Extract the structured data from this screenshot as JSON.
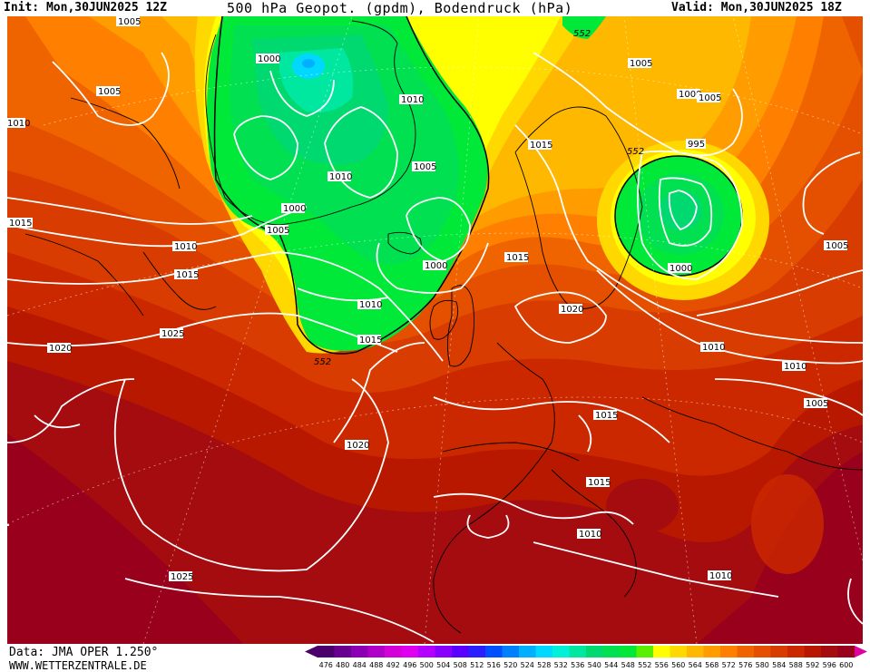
{
  "header": {
    "init_text": "Init: Mon,30JUN2025 12Z",
    "title": "500 hPa Geopot. (gpdm), Bodendruck (hPa)",
    "valid_text": "Valid: Mon,30JUN2025 18Z"
  },
  "footer": {
    "data_source": "Data: JMA OPER 1.250°",
    "website": "WWW.WETTERZENTRALE.DE"
  },
  "legend": {
    "values": [
      "476",
      "480",
      "484",
      "488",
      "492",
      "496",
      "500",
      "504",
      "508",
      "512",
      "516",
      "520",
      "524",
      "528",
      "532",
      "536",
      "540",
      "544",
      "548",
      "552",
      "556",
      "560",
      "564",
      "568",
      "572",
      "576",
      "580",
      "584",
      "588",
      "592",
      "596",
      "600"
    ],
    "colors": [
      "#4b006b",
      "#6a0090",
      "#8c00b4",
      "#b000c8",
      "#d400d8",
      "#e000f0",
      "#b400ff",
      "#8a00ff",
      "#5a00ff",
      "#2a20ff",
      "#0050ff",
      "#0080ff",
      "#00b0ff",
      "#00d8ff",
      "#00f0d8",
      "#00e8a0",
      "#00d870",
      "#00e050",
      "#00e838",
      "#58f000",
      "#ffff00",
      "#ffd800",
      "#ffb800",
      "#ff9c00",
      "#ff8000",
      "#f06400",
      "#e45000",
      "#d83c00",
      "#cc2800",
      "#b81800",
      "#a40c10",
      "#98001c"
    ]
  },
  "map_labels": {
    "isobars": [
      "1005",
      "1005",
      "1000",
      "1010",
      "1005",
      "1010",
      "1000",
      "1005",
      "1010",
      "1015",
      "1000",
      "1010",
      "1015",
      "1010",
      "1015",
      "1015",
      "1025",
      "1020",
      "1020",
      "1015",
      "1005",
      "1005",
      "1000",
      "995",
      "1000",
      "1010",
      "1010",
      "1005",
      "1005",
      "1020",
      "1015",
      "1015",
      "1010",
      "1010",
      "1025",
      "1015",
      "1005"
    ],
    "geopotential": [
      "552",
      "552",
      "552"
    ]
  }
}
